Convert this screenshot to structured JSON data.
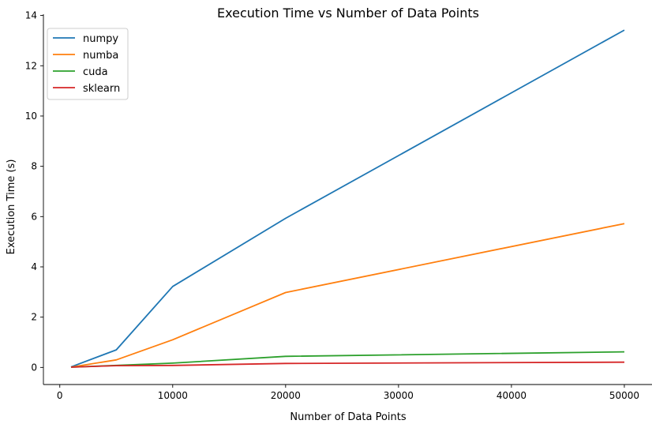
{
  "chart_data": {
    "type": "line",
    "title": "Execution Time vs Number of Data Points",
    "xlabel": "Number of Data Points",
    "ylabel": "Execution Time (s)",
    "xlim": [
      -1450,
      52450
    ],
    "ylim": [
      -0.68,
      14.05
    ],
    "xticks": [
      0,
      10000,
      20000,
      30000,
      40000,
      50000
    ],
    "yticks": [
      0,
      2,
      4,
      6,
      8,
      10,
      12,
      14
    ],
    "grid": false,
    "legend_position": "top-left",
    "x": [
      1000,
      5000,
      10000,
      20000,
      50000
    ],
    "series": [
      {
        "name": "numpy",
        "color": "#1f77b4",
        "values": [
          0.02,
          0.7,
          3.22,
          5.93,
          13.42
        ]
      },
      {
        "name": "numba",
        "color": "#ff7f0e",
        "values": [
          0.01,
          0.3,
          1.1,
          2.98,
          5.72
        ]
      },
      {
        "name": "cuda",
        "color": "#2ca02c",
        "values": [
          0.01,
          0.08,
          0.17,
          0.44,
          0.62
        ]
      },
      {
        "name": "sklearn",
        "color": "#d62728",
        "values": [
          0.01,
          0.07,
          0.08,
          0.16,
          0.21
        ]
      }
    ]
  }
}
